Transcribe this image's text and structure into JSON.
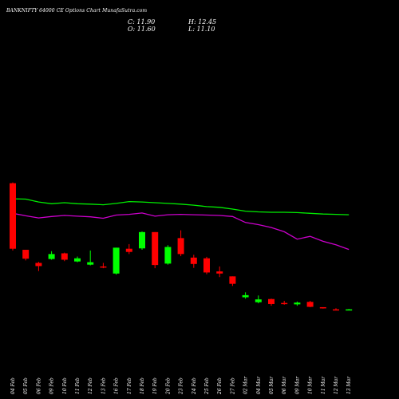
{
  "header": {
    "title": "BANKNIFTY 64000 CE Options Chart MunafaSutra.com",
    "close": "C: 11.90",
    "open": "O: 11.60",
    "high": "H: 12.45",
    "low": "L: 11.10"
  },
  "colors": {
    "background": "#000000",
    "up": "#00ff00",
    "down": "#ff0000",
    "ma_green": "#00ee00",
    "ma_magenta": "#cc00cc",
    "text": "#ffffff"
  },
  "chart_data": {
    "type": "candlestick",
    "categories": [
      "04 Feb",
      "05 Feb",
      "06 Feb",
      "09 Feb",
      "10 Feb",
      "11 Feb",
      "12 Feb",
      "13 Feb",
      "16 Feb",
      "17 Feb",
      "18 Feb",
      "19 Feb",
      "20 Feb",
      "23 Feb",
      "24 Feb",
      "25 Feb",
      "26 Feb",
      "27 Feb",
      "02 Mar",
      "04 Mar",
      "05 Mar",
      "06 Mar",
      "09 Mar",
      "10 Mar",
      "11 Mar",
      "12 Mar",
      "13 Mar"
    ],
    "candles": [
      {
        "o": 260,
        "h": 262,
        "l": 70,
        "c": 75,
        "dir": "down"
      },
      {
        "o": 72,
        "h": 72,
        "l": 42,
        "c": 47,
        "dir": "down"
      },
      {
        "o": 35,
        "h": 38,
        "l": 12,
        "c": 26,
        "dir": "down"
      },
      {
        "o": 46,
        "h": 68,
        "l": 44,
        "c": 60,
        "dir": "up"
      },
      {
        "o": 62,
        "h": 64,
        "l": 40,
        "c": 44,
        "dir": "down"
      },
      {
        "o": 39,
        "h": 53,
        "l": 37,
        "c": 48,
        "dir": "up"
      },
      {
        "o": 30,
        "h": 70,
        "l": 28,
        "c": 37,
        "dir": "up"
      },
      {
        "o": 25,
        "h": 35,
        "l": 20,
        "c": 23,
        "dir": "down"
      },
      {
        "o": 5,
        "h": 78,
        "l": 2,
        "c": 78,
        "dir": "up"
      },
      {
        "o": 75,
        "h": 88,
        "l": 60,
        "c": 66,
        "dir": "down"
      },
      {
        "o": 76,
        "h": 124,
        "l": 72,
        "c": 122,
        "dir": "up"
      },
      {
        "o": 122,
        "h": 122,
        "l": 20,
        "c": 29,
        "dir": "down"
      },
      {
        "o": 33,
        "h": 85,
        "l": 30,
        "c": 80,
        "dir": "up"
      },
      {
        "o": 105,
        "h": 127,
        "l": 54,
        "c": 60,
        "dir": "down"
      },
      {
        "o": 50,
        "h": 58,
        "l": 21,
        "c": 32,
        "dir": "down"
      },
      {
        "o": 48,
        "h": 52,
        "l": 3,
        "c": 8,
        "dir": "down"
      },
      {
        "o": 11,
        "h": 25,
        "l": -5,
        "c": 5,
        "dir": "down"
      },
      {
        "o": -3,
        "h": -3,
        "l": -30,
        "c": -24,
        "dir": "down"
      },
      {
        "o": -62,
        "h": -48,
        "l": -66,
        "c": -56,
        "dir": "up"
      },
      {
        "o": -76,
        "h": -57,
        "l": -79,
        "c": -68,
        "dir": "up"
      },
      {
        "o": -67,
        "h": -66,
        "l": -86,
        "c": -81,
        "dir": "down"
      },
      {
        "o": -81,
        "h": -72,
        "l": -83,
        "c": -78,
        "dir": "down"
      },
      {
        "o": -82,
        "h": -74,
        "l": -86,
        "c": -77,
        "dir": "up"
      },
      {
        "o": -75,
        "h": -72,
        "l": -90,
        "c": -89,
        "dir": "down"
      },
      {
        "o": -90,
        "h": -90,
        "l": -94,
        "c": -93,
        "dir": "down"
      },
      {
        "o": -96,
        "h": -93,
        "l": -98,
        "c": -97,
        "dir": "down"
      },
      {
        "o": -97,
        "h": -95,
        "l": -98,
        "c": -96,
        "dir": "up"
      }
    ],
    "ma_short": [
      175,
      168,
      162,
      166,
      169,
      167,
      165,
      161,
      170,
      172,
      176,
      167,
      171,
      172,
      171,
      170,
      169,
      166,
      149,
      143,
      135,
      123,
      102,
      110,
      96,
      86,
      73
    ],
    "ma_long": [
      216,
      215,
      207,
      202,
      205,
      202,
      201,
      199,
      203,
      208,
      207,
      205,
      203,
      201,
      198,
      194,
      192,
      187,
      181,
      179,
      178,
      178,
      177,
      175,
      173,
      172,
      171
    ]
  }
}
